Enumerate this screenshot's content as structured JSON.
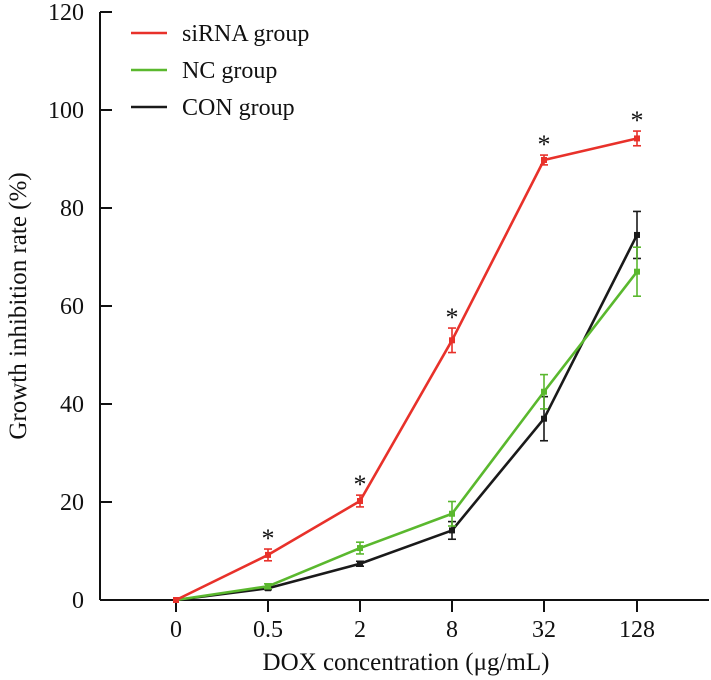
{
  "chart_data": {
    "type": "line",
    "title": "",
    "xlabel": "DOX concentration (μg/mL)",
    "ylabel": "Growth inhibition rate (%)",
    "categories": [
      "0",
      "0.5",
      "2",
      "8",
      "32",
      "128"
    ],
    "ylim": [
      0,
      120
    ],
    "yticks": [
      "0",
      "20",
      "40",
      "60",
      "80",
      "100",
      "120"
    ],
    "grid": false,
    "legend_position": "top-left",
    "significance_marker": "*",
    "series": [
      {
        "name": "siRNA group",
        "color": "#e8312a",
        "values": [
          0,
          9.2,
          20.2,
          53.0,
          89.8,
          94.2
        ],
        "errors": [
          0,
          1.2,
          1.2,
          2.5,
          1.0,
          1.5
        ],
        "significant": [
          false,
          true,
          true,
          true,
          true,
          true
        ]
      },
      {
        "name": "NC group",
        "color": "#5ab82e",
        "values": [
          0,
          2.8,
          10.6,
          17.6,
          42.5,
          67.0
        ],
        "errors": [
          0,
          0.5,
          1.2,
          2.5,
          3.5,
          5.0
        ],
        "significant": [
          false,
          false,
          false,
          false,
          false,
          false
        ]
      },
      {
        "name": "CON group",
        "color": "#1a1a1a",
        "values": [
          0,
          2.4,
          7.4,
          14.2,
          37.0,
          74.5
        ],
        "errors": [
          0,
          0.3,
          0.5,
          1.8,
          4.5,
          4.8
        ],
        "significant": [
          false,
          false,
          false,
          false,
          false,
          false
        ]
      }
    ]
  }
}
